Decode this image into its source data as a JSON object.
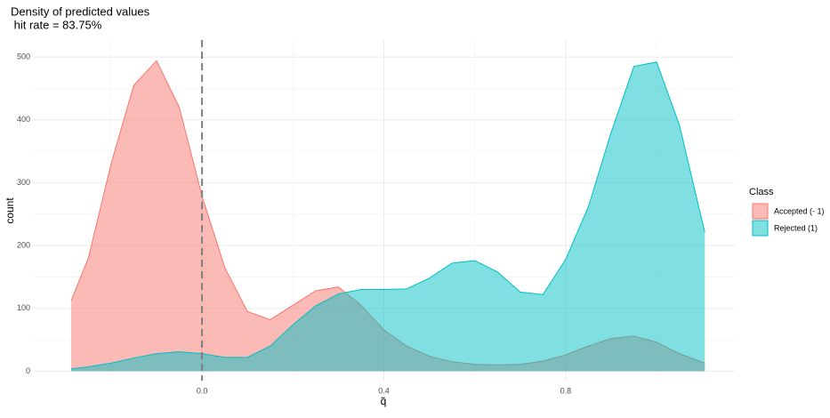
{
  "chart_data": {
    "type": "area",
    "title": "Density of predicted values",
    "subtitle": " hit rate = 83.75%",
    "xlabel": "q̃",
    "ylabel": "count",
    "legend_title": "Class",
    "legend_position": "right",
    "grid": true,
    "vline": 0,
    "x": [
      -0.288,
      -0.25,
      -0.2,
      -0.15,
      -0.1,
      -0.05,
      0,
      0.05,
      0.1,
      0.15,
      0.2,
      0.25,
      0.3,
      0.35,
      0.4,
      0.45,
      0.5,
      0.55,
      0.6,
      0.65,
      0.7,
      0.75,
      0.8,
      0.85,
      0.9,
      0.95,
      1.0,
      1.05,
      1.106
    ],
    "series": [
      {
        "name": "Accepted (- 1)",
        "color": "#F8766D",
        "values": [
          112,
          180,
          330,
          455,
          494,
          420,
          279,
          165,
          95,
          82,
          105,
          128,
          134,
          105,
          66,
          40,
          24,
          15,
          11,
          10,
          11,
          16,
          26,
          40,
          52,
          56,
          46,
          28,
          13
        ]
      },
      {
        "name": "Rejected (1)",
        "color": "#00BFC4",
        "values": [
          4,
          7,
          13,
          21,
          28,
          31,
          28,
          22,
          22,
          40,
          74,
          104,
          123,
          130,
          130,
          131,
          148,
          172,
          176,
          158,
          126,
          122,
          178,
          262,
          380,
          485,
          492,
          392,
          221
        ]
      }
    ],
    "xlim": [
      -0.37,
      1.172
    ],
    "ylim": [
      -15,
      527
    ],
    "xticks": [
      {
        "value": 0,
        "label": "0.0"
      },
      0.4,
      0.8
    ],
    "yticks": [
      0,
      100,
      200,
      300,
      400,
      500
    ],
    "xminor": [
      -0.2,
      0.2,
      0.6,
      1.0
    ],
    "yminor": [
      50,
      150,
      250,
      350,
      450
    ]
  }
}
